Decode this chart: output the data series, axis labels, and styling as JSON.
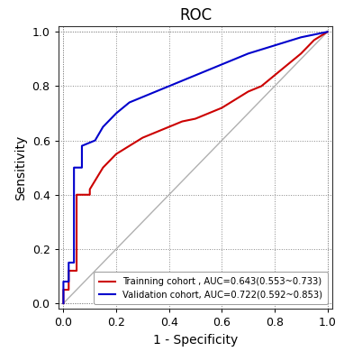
{
  "title": "ROC",
  "xlabel": "1 - Specificity",
  "ylabel": "Sensitivity",
  "training_label": "Trainning cohort , AUC=0.643(0.553~0.733)",
  "validation_label": "Validation cohort, AUC=0.722(0.592~0.853)",
  "training_color": "#CC0000",
  "validation_color": "#0000CC",
  "diagonal_color": "#B0B0B0",
  "background_color": "#FFFFFF",
  "xlim": [
    -0.02,
    1.02
  ],
  "ylim": [
    -0.02,
    1.02
  ],
  "xticks": [
    0.0,
    0.2,
    0.4,
    0.6,
    0.8,
    1.0
  ],
  "yticks": [
    0.0,
    0.2,
    0.4,
    0.6,
    0.8,
    1.0
  ],
  "training_fpr": [
    0.0,
    0.0,
    0.02,
    0.02,
    0.05,
    0.05,
    0.1,
    0.1,
    0.15,
    0.2,
    0.25,
    0.3,
    0.35,
    0.4,
    0.45,
    0.5,
    0.55,
    0.6,
    0.65,
    0.7,
    0.75,
    0.8,
    0.85,
    0.9,
    0.95,
    1.0
  ],
  "training_tpr": [
    0.0,
    0.05,
    0.05,
    0.12,
    0.12,
    0.4,
    0.4,
    0.42,
    0.5,
    0.55,
    0.58,
    0.61,
    0.63,
    0.65,
    0.67,
    0.68,
    0.7,
    0.72,
    0.75,
    0.78,
    0.8,
    0.84,
    0.88,
    0.92,
    0.97,
    1.0
  ],
  "validation_fpr": [
    0.0,
    0.0,
    0.02,
    0.02,
    0.04,
    0.04,
    0.07,
    0.07,
    0.12,
    0.15,
    0.2,
    0.25,
    0.3,
    0.4,
    0.5,
    0.6,
    0.7,
    0.8,
    0.9,
    1.0
  ],
  "validation_tpr": [
    0.0,
    0.08,
    0.08,
    0.15,
    0.15,
    0.5,
    0.5,
    0.58,
    0.6,
    0.65,
    0.7,
    0.74,
    0.76,
    0.8,
    0.84,
    0.88,
    0.92,
    0.95,
    0.98,
    1.0
  ],
  "figsize": [
    3.82,
    4.0
  ],
  "dpi": 100
}
